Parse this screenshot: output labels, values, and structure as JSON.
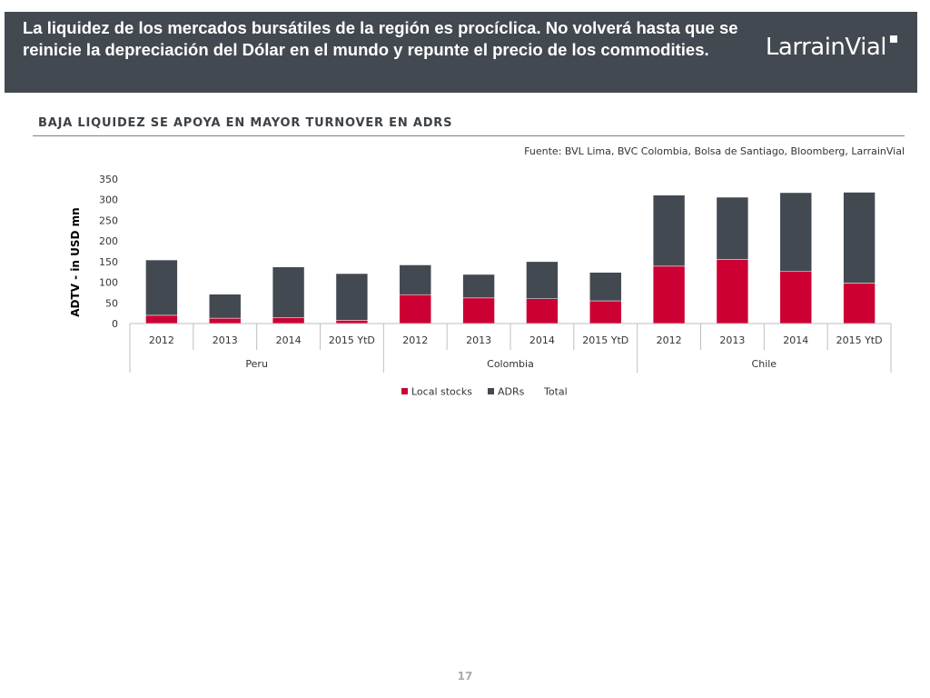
{
  "header": {
    "title": "La liquidez de los mercados bursátiles de la región es procíclica. No volverá hasta que se reinicie la depreciación del Dólar en el mundo y repunte el precio de los commodities.",
    "logo_text": "LarrainVial"
  },
  "section": {
    "subtitle": "BAJA LIQUIDEZ SE APOYA EN MAYOR TURNOVER EN ADRS",
    "source": "Fuente: BVL Lima, BVC Colombia, Bolsa de Santiago, Bloomberg, LarrainVial"
  },
  "page_number": "17",
  "colors": {
    "header_bg": "#434950",
    "local": "#cc0033",
    "adrs": "#434950"
  },
  "chart_data": {
    "type": "bar",
    "stacked": true,
    "ylabel": "ADTV - in USD mn",
    "ylim": [
      0,
      350
    ],
    "yticks": [
      0,
      50,
      100,
      150,
      200,
      250,
      300,
      350
    ],
    "groups": [
      {
        "name": "Peru",
        "categories": [
          "2012",
          "2013",
          "2014",
          "2015 YtD"
        ]
      },
      {
        "name": "Colombia",
        "categories": [
          "2012",
          "2013",
          "2014",
          "2015 YtD"
        ]
      },
      {
        "name": "Chile",
        "categories": [
          "2012",
          "2013",
          "2014",
          "2015 YtD"
        ]
      }
    ],
    "series": [
      {
        "name": "Local stocks",
        "color": "#cc0033",
        "values": [
          20,
          13,
          14,
          8,
          70,
          62,
          60,
          55,
          139,
          155,
          126,
          98
        ]
      },
      {
        "name": "ADRs",
        "color": "#434950",
        "values": [
          134,
          58,
          123,
          113,
          72,
          57,
          90,
          69,
          172,
          151,
          191,
          220
        ]
      }
    ],
    "legend": [
      "Local stocks",
      "ADRs",
      "Total"
    ],
    "legend_position": "bottom"
  }
}
